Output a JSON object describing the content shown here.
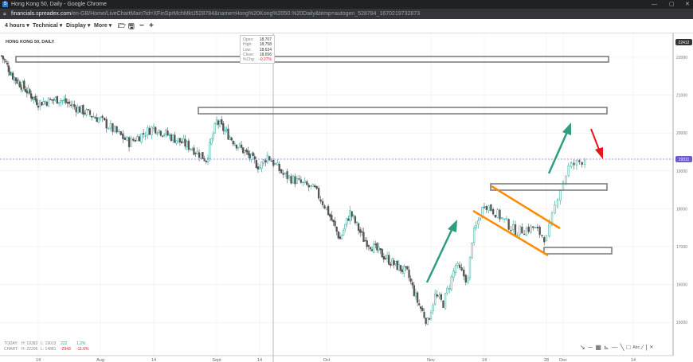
{
  "window": {
    "title": "Hong Kong 50, Daily - Google Chrome",
    "favicon": "S"
  },
  "address": {
    "host": "financials.spreadex.com",
    "path": "/en-GB/Home/LiveChartMain?id=XFinSprMchMktJ528784&name=Hong%20Kong%2050.%20Daily&temp=autogen_528784_1670219732873"
  },
  "toolbar": {
    "interval": "4 hours",
    "technical": "Technical",
    "display": "Display",
    "more": "More",
    "icons": [
      "folder-open-icon",
      "save-icon",
      "zoom-out-icon",
      "zoom-in-icon"
    ]
  },
  "chart": {
    "title": "HONG KONG 50, DAILY",
    "y_ticks": [
      "22000",
      "21000",
      "20000",
      "19000",
      "18000",
      "17000",
      "16000",
      "15000"
    ],
    "x_ticks": [
      "14",
      "Aug",
      "14",
      "Sept",
      "14",
      "Oct",
      "Nov",
      "14",
      "28",
      "Dec",
      "14"
    ],
    "top_label": "22412",
    "current_price": "19311",
    "colors": {
      "up": "#26a69a",
      "down": "#555555",
      "current": "#6a5acd",
      "orange": "#ff8c00",
      "green_arrow": "#2e9d82",
      "red_arrow": "#e8141c"
    },
    "price_path": [
      [
        "Jul 1",
        22040
      ],
      [
        "Jul 5",
        21500
      ],
      [
        "Jul 14",
        20800
      ],
      [
        "Jul 20",
        20900
      ],
      [
        "Aug 1",
        20350
      ],
      [
        "Aug 8",
        19750
      ],
      [
        "Aug 14",
        20150
      ],
      [
        "Aug 25",
        19600
      ],
      [
        "Aug 29",
        19300
      ],
      [
        "Sep 1",
        20300
      ],
      [
        "Sep 6",
        19800
      ],
      [
        "Sep 14",
        19100
      ],
      [
        "Sep 16",
        19400
      ],
      [
        "Sep 20",
        18900
      ],
      [
        "Sep 28",
        18500
      ],
      [
        "Oct 1",
        18000
      ],
      [
        "Oct 5",
        17200
      ],
      [
        "Oct 8",
        17900
      ],
      [
        "Oct 12",
        17200
      ],
      [
        "Oct 20",
        16600
      ],
      [
        "Oct 25",
        16300
      ],
      [
        "Oct 28",
        15550
      ],
      [
        "Oct 31",
        15000
      ],
      [
        "Nov 2",
        15700
      ],
      [
        "Nov 4",
        15500
      ],
      [
        "Nov 7",
        16500
      ],
      [
        "Nov 10",
        16100
      ],
      [
        "Nov 11",
        17200
      ],
      [
        "Nov 14",
        18150
      ],
      [
        "Nov 17",
        17850
      ],
      [
        "Nov 21",
        17400
      ],
      [
        "Nov 25",
        17500
      ],
      [
        "Nov 28",
        17200
      ],
      [
        "Nov 30",
        18350
      ],
      [
        "Dec 2",
        19100
      ],
      [
        "Dec 5",
        19311
      ]
    ]
  },
  "ohlc": {
    "open_label": "Open:",
    "open": "18,707",
    "high_label": "High:",
    "high": "18,758",
    "low_label": "Low:",
    "low": "18,634",
    "close_label": "Close:",
    "close": "18,656",
    "chg_label": "%Chg:",
    "chg": "-0.27%"
  },
  "stats": {
    "today": {
      "label": "TODAY:",
      "high": "H: 19383",
      "low": "L: 19013",
      "change": "222",
      "pct": "1.2%"
    },
    "chart": {
      "label": "CHART:",
      "high": "H: 22206",
      "low": "L: 14881",
      "change": "-2943",
      "pct": "-11.6%"
    }
  },
  "draw_tools": [
    "line-tool-icon",
    "curve-tool-icon",
    "fib-tool-icon",
    "fan-tool-icon",
    "horizontal-line-icon",
    "trend-line-icon",
    "rectangle-tool-icon",
    "text-tool-icon",
    "ray-tool-icon",
    "separator",
    "close-icon"
  ]
}
